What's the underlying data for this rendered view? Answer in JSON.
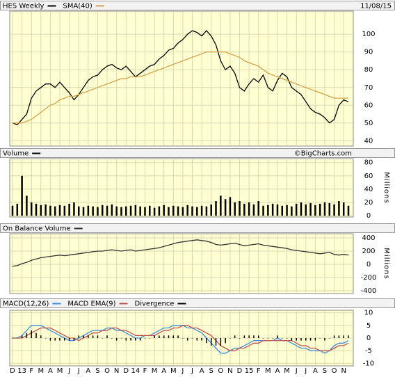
{
  "chart_data": [
    {
      "type": "line",
      "date": "11/08/15",
      "series": [
        {
          "name": "HES Weekly",
          "color": "#000000",
          "values": [
            50,
            49,
            52,
            55,
            64,
            68,
            70,
            72,
            72,
            70,
            73,
            70,
            67,
            63,
            66,
            70,
            74,
            76,
            77,
            80,
            82,
            83,
            81,
            80,
            82,
            79,
            76,
            78,
            80,
            82,
            83,
            86,
            88,
            91,
            92,
            95,
            97,
            100,
            102,
            101,
            99,
            102,
            99,
            94,
            85,
            80,
            82,
            78,
            70,
            68,
            72,
            75,
            73,
            77,
            70,
            68,
            74,
            78,
            76,
            70,
            68,
            66,
            62,
            58,
            56,
            55,
            53,
            50,
            52,
            60,
            63,
            62
          ]
        },
        {
          "name": "SMA(40)",
          "color": "#d4a04a",
          "values": [
            50,
            50,
            50,
            51,
            52,
            54,
            56,
            58,
            60,
            61,
            63,
            64,
            65,
            65,
            66,
            67,
            68,
            69,
            70,
            71,
            72,
            73,
            74,
            75,
            75,
            76,
            76,
            76,
            77,
            78,
            79,
            80,
            81,
            82,
            83,
            84,
            85,
            86,
            87,
            88,
            89,
            90,
            90,
            90,
            90,
            90,
            89,
            88,
            87,
            85,
            84,
            83,
            82,
            80,
            78,
            77,
            76,
            75,
            74,
            73,
            72,
            71,
            70,
            69,
            68,
            67,
            66,
            65,
            64,
            64,
            64,
            64
          ]
        }
      ],
      "ylim": [
        37,
        113
      ],
      "yticks": [
        40,
        50,
        60,
        70,
        80,
        90,
        100
      ],
      "grid": true
    },
    {
      "type": "bar",
      "title": "Volume",
      "credit": "©BigCharts.com",
      "color": "#000000",
      "y_label": "Millions",
      "values": [
        15,
        18,
        60,
        30,
        20,
        18,
        16,
        17,
        15,
        14,
        16,
        15,
        18,
        20,
        14,
        13,
        15,
        14,
        13,
        16,
        15,
        17,
        14,
        13,
        14,
        15,
        16,
        14,
        13,
        15,
        12,
        14,
        16,
        13,
        15,
        14,
        13,
        16,
        14,
        13,
        15,
        14,
        17,
        22,
        30,
        25,
        28,
        20,
        22,
        18,
        20,
        17,
        22,
        15,
        16,
        18,
        17,
        15,
        16,
        14,
        18,
        20,
        17,
        19,
        16,
        18,
        20,
        19,
        17,
        22,
        20,
        15
      ],
      "ylim": [
        -2,
        86
      ],
      "yticks": [
        0,
        20,
        40,
        60,
        80
      ],
      "grid": true
    },
    {
      "type": "line",
      "title": "On Balance Volume",
      "color": "#333333",
      "y_label": "Millions",
      "values": [
        -30,
        -20,
        10,
        30,
        60,
        80,
        100,
        110,
        120,
        130,
        140,
        130,
        140,
        150,
        160,
        170,
        180,
        190,
        200,
        200,
        210,
        220,
        210,
        200,
        210,
        220,
        200,
        210,
        220,
        230,
        240,
        250,
        270,
        290,
        310,
        330,
        340,
        350,
        360,
        370,
        360,
        350,
        330,
        300,
        290,
        300,
        310,
        320,
        300,
        280,
        290,
        300,
        310,
        290,
        280,
        270,
        260,
        250,
        240,
        220,
        210,
        200,
        190,
        180,
        170,
        160,
        170,
        180,
        150,
        140,
        150,
        140
      ],
      "ylim": [
        -442,
        463
      ],
      "yticks": [
        -400,
        -200,
        0,
        200,
        400
      ],
      "grid": true
    },
    {
      "type": "line",
      "series": [
        {
          "name": "MACD(12,26)",
          "color": "#3b8fe0",
          "values": [
            0,
            0,
            1,
            3,
            5,
            5,
            5,
            4,
            3,
            2,
            1,
            0,
            -1,
            -1,
            0,
            1,
            2,
            3,
            3,
            3,
            4,
            4,
            3,
            3,
            2,
            1,
            0,
            0,
            1,
            1,
            2,
            3,
            4,
            4,
            5,
            5,
            5,
            4,
            4,
            3,
            2,
            0,
            -2,
            -4,
            -6,
            -6,
            -5,
            -4,
            -4,
            -3,
            -2,
            -1,
            -1,
            -1,
            -1,
            -1,
            0,
            -1,
            -1,
            -2,
            -3,
            -4,
            -4,
            -5,
            -5,
            -5,
            -6,
            -5,
            -3,
            -2,
            -2,
            -1
          ]
        },
        {
          "name": "MACD EMA(9)",
          "color": "#c0504d",
          "values": [
            0,
            0,
            0,
            1,
            2,
            3,
            4,
            4,
            4,
            3,
            2,
            1,
            0,
            0,
            -1,
            0,
            1,
            2,
            2,
            3,
            3,
            4,
            4,
            3,
            3,
            2,
            1,
            1,
            1,
            1,
            1,
            2,
            3,
            3,
            4,
            4,
            5,
            5,
            4,
            4,
            3,
            2,
            1,
            -1,
            -3,
            -4,
            -5,
            -5,
            -4,
            -4,
            -3,
            -2,
            -2,
            -1,
            -1,
            -1,
            -1,
            -1,
            -1,
            -1,
            -2,
            -3,
            -3,
            -4,
            -4,
            -5,
            -5,
            -5,
            -4,
            -3,
            -3,
            -2
          ]
        },
        {
          "name": "Divergence",
          "color": "#000000",
          "type": "bar",
          "values": [
            0,
            0,
            1,
            2,
            3,
            2,
            1,
            0,
            -1,
            -1,
            -1,
            -1,
            -1,
            -1,
            1,
            1,
            1,
            1,
            1,
            0,
            1,
            0,
            -1,
            0,
            -1,
            -1,
            -1,
            -1,
            0,
            0,
            1,
            1,
            1,
            1,
            1,
            1,
            0,
            -1,
            0,
            -1,
            -1,
            -2,
            -3,
            -3,
            -3,
            -2,
            0,
            1,
            0,
            1,
            1,
            1,
            1,
            0,
            0,
            0,
            1,
            0,
            0,
            -1,
            -1,
            -1,
            -1,
            -1,
            -1,
            0,
            -1,
            0,
            1,
            1,
            1,
            1
          ]
        }
      ],
      "categories": [
        "D",
        null,
        "13",
        null,
        "F",
        null,
        "M",
        null,
        "A",
        null,
        "M",
        null,
        "J",
        null,
        "J",
        null,
        "A",
        null,
        "S",
        null,
        "O",
        null,
        "N",
        null,
        "D",
        null,
        "14",
        null,
        "F",
        null,
        "M",
        null,
        "A",
        null,
        "M",
        null,
        "J",
        null,
        "J",
        null,
        "A",
        null,
        "S",
        null,
        "O",
        null,
        "N",
        null,
        "D",
        null,
        "15",
        null,
        "F",
        null,
        "M",
        null,
        "A",
        null,
        "M",
        null,
        "J",
        null,
        "J",
        null,
        "A",
        null,
        "S",
        null,
        "O",
        null,
        "N",
        null
      ],
      "ylim": [
        -11,
        11
      ],
      "yticks": [
        -10,
        -5,
        0,
        5,
        10
      ],
      "grid": true
    }
  ]
}
